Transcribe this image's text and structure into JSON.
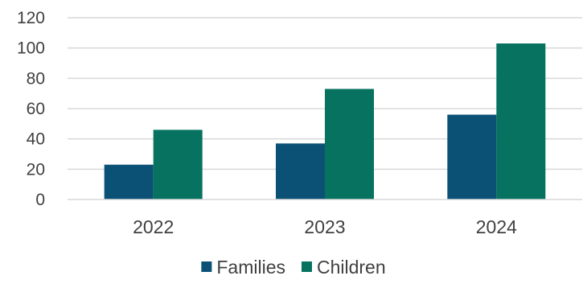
{
  "chart_data": {
    "type": "bar",
    "title": "",
    "xlabel": "",
    "ylabel": "",
    "categories": [
      "2022",
      "2023",
      "2024"
    ],
    "series": [
      {
        "name": "Families",
        "values": [
          23,
          37,
          56
        ],
        "color": "#0b5176"
      },
      {
        "name": "Children",
        "values": [
          46,
          73,
          103
        ],
        "color": "#06725f"
      }
    ],
    "ylim": [
      0,
      120
    ],
    "yticks": [
      0,
      20,
      40,
      60,
      80,
      100,
      120
    ],
    "grid": true,
    "legend_position": "bottom"
  }
}
